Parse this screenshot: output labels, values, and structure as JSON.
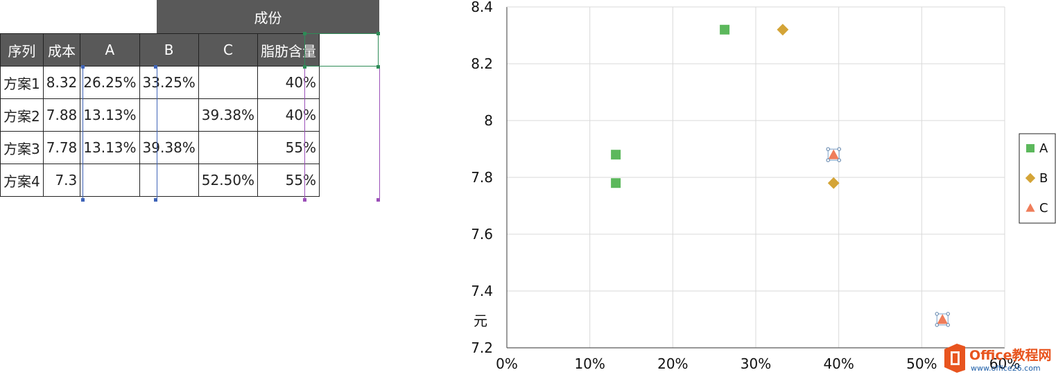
{
  "table": {
    "group_header": "成份",
    "headers": [
      "序列",
      "成本",
      "A",
      "B",
      "C",
      "脂肪含量"
    ],
    "rows": [
      {
        "name": "方案1",
        "cost": "8.32",
        "a": "26.25%",
        "b": "33.25%",
        "c": "",
        "fat": "40%"
      },
      {
        "name": "方案2",
        "cost": "7.88",
        "a": "13.13%",
        "b": "",
        "c": "39.38%",
        "fat": "40%"
      },
      {
        "name": "方案3",
        "cost": "7.78",
        "a": "13.13%",
        "b": "39.38%",
        "c": "",
        "fat": "55%"
      },
      {
        "name": "方案4",
        "cost": "7.3",
        "a": "",
        "b": "",
        "c": "52.50%",
        "fat": "55%"
      }
    ]
  },
  "chart_data": {
    "type": "scatter",
    "xlim": [
      0,
      0.6
    ],
    "ylim": [
      7.2,
      8.4
    ],
    "xticks": [
      0,
      0.1,
      0.2,
      0.3,
      0.4,
      0.5,
      0.6
    ],
    "xtick_labels": [
      "0%",
      "10%",
      "20%",
      "30%",
      "40%",
      "50%",
      "60%"
    ],
    "yticks": [
      7.2,
      7.4,
      7.6,
      7.8,
      8.0,
      8.2,
      8.4
    ],
    "ytick_labels": [
      "7.2",
      "7.4",
      "7.6",
      "7.8",
      "8",
      "8.2",
      "8.4"
    ],
    "ylabel": "元",
    "grid": true,
    "legend_position": "right",
    "series": [
      {
        "name": "A",
        "marker": "square",
        "color": "#5cb85c",
        "points": [
          [
            0.2625,
            8.32
          ],
          [
            0.1313,
            7.88
          ],
          [
            0.1313,
            7.78
          ]
        ]
      },
      {
        "name": "B",
        "marker": "diamond",
        "color": "#d4a437",
        "points": [
          [
            0.3325,
            8.32
          ],
          [
            0.3938,
            7.78
          ]
        ]
      },
      {
        "name": "C",
        "marker": "triangle",
        "color": "#ef7d5a",
        "points": [
          [
            0.3938,
            7.88
          ],
          [
            0.525,
            7.3
          ]
        ]
      }
    ]
  },
  "watermark": {
    "brand": "Office教程网",
    "url": "www.office26.com",
    "colors": {
      "orange": "#e8541e",
      "blue": "#1f5fa8"
    }
  }
}
